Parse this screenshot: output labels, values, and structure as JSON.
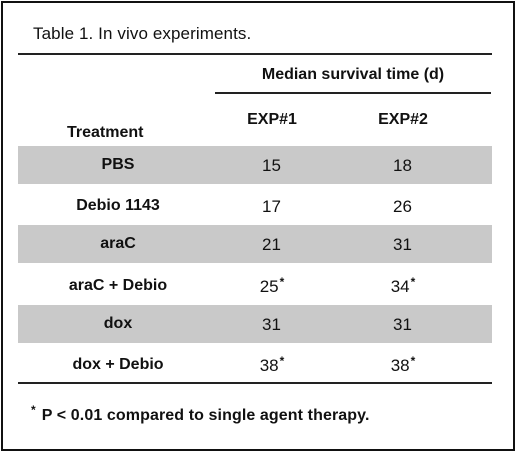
{
  "table": {
    "title": "Table 1. In vivo experiments.",
    "group_header": "Median survival time (d)",
    "col_treatment": "Treatment",
    "col_exp1": "EXP#1",
    "col_exp2": "EXP#2",
    "rows": [
      {
        "treatment": "PBS",
        "exp1": "15",
        "exp1_mark": "",
        "exp2": "18",
        "exp2_mark": "",
        "shaded": true
      },
      {
        "treatment": "Debio 1143",
        "exp1": "17",
        "exp1_mark": "",
        "exp2": "26",
        "exp2_mark": "",
        "shaded": false
      },
      {
        "treatment": "araC",
        "exp1": "21",
        "exp1_mark": "",
        "exp2": "31",
        "exp2_mark": "",
        "shaded": true
      },
      {
        "treatment": "araC + Debio",
        "exp1": "25",
        "exp1_mark": "*",
        "exp2": "34",
        "exp2_mark": "*",
        "shaded": false
      },
      {
        "treatment": "dox",
        "exp1": "31",
        "exp1_mark": "",
        "exp2": "31",
        "exp2_mark": "",
        "shaded": true
      },
      {
        "treatment": "dox + Debio",
        "exp1": "38",
        "exp1_mark": "*",
        "exp2": "38",
        "exp2_mark": "*",
        "shaded": false
      }
    ],
    "shade_color": "#c9c9c9"
  },
  "footnote": {
    "marker": "*",
    "text": "P < 0.01 compared to single agent therapy."
  }
}
